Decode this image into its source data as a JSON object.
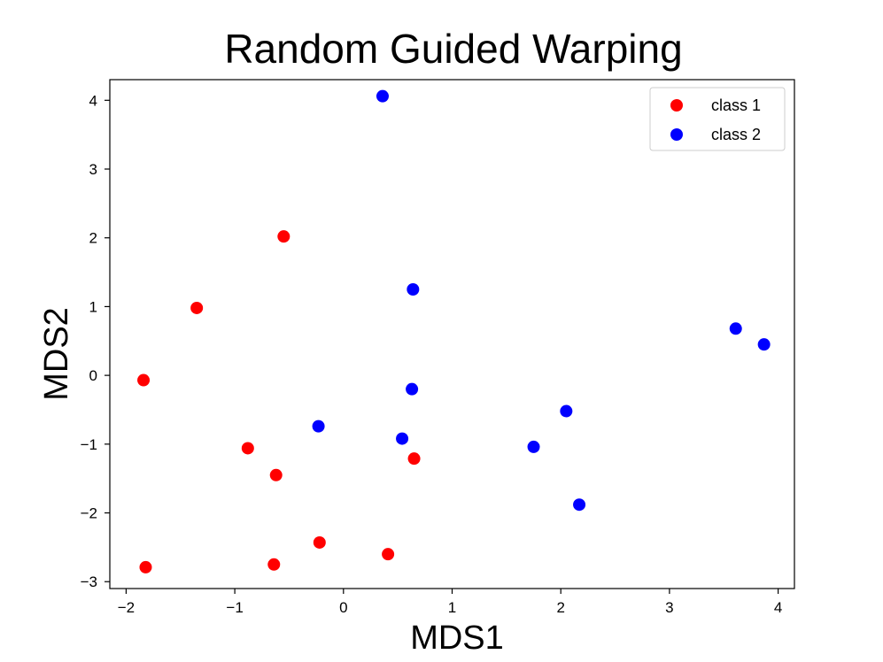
{
  "chart_data": {
    "type": "scatter",
    "title": "Random Guided Warping",
    "xlabel": "MDS1",
    "ylabel": "MDS2",
    "xlim": [
      -2.15,
      4.15
    ],
    "ylim": [
      -3.1,
      4.3
    ],
    "xticks": [
      -2,
      -1,
      0,
      1,
      2,
      3,
      4
    ],
    "yticks": [
      -3,
      -2,
      -1,
      0,
      1,
      2,
      3,
      4
    ],
    "xtick_labels": [
      "−2",
      "−1",
      "0",
      "1",
      "2",
      "3",
      "4"
    ],
    "ytick_labels": [
      "−3",
      "−2",
      "−1",
      "0",
      "1",
      "2",
      "3",
      "4"
    ],
    "grid": false,
    "legend_position": "top-right",
    "series": [
      {
        "name": "class 1",
        "color": "#ff0000",
        "points": [
          {
            "x": -0.55,
            "y": 2.02
          },
          {
            "x": -1.35,
            "y": 0.98
          },
          {
            "x": -1.84,
            "y": -0.07
          },
          {
            "x": -0.88,
            "y": -1.06
          },
          {
            "x": -0.62,
            "y": -1.45
          },
          {
            "x": 0.65,
            "y": -1.21
          },
          {
            "x": -0.22,
            "y": -2.43
          },
          {
            "x": 0.41,
            "y": -2.6
          },
          {
            "x": -0.64,
            "y": -2.75
          },
          {
            "x": -1.82,
            "y": -2.79
          }
        ]
      },
      {
        "name": "class 2",
        "color": "#0000ff",
        "points": [
          {
            "x": 0.36,
            "y": 4.06
          },
          {
            "x": 0.64,
            "y": 1.25
          },
          {
            "x": 3.61,
            "y": 0.68
          },
          {
            "x": 3.87,
            "y": 0.45
          },
          {
            "x": 0.63,
            "y": -0.2
          },
          {
            "x": 2.05,
            "y": -0.52
          },
          {
            "x": -0.23,
            "y": -0.74
          },
          {
            "x": 0.54,
            "y": -0.92
          },
          {
            "x": 1.75,
            "y": -1.04
          },
          {
            "x": 2.17,
            "y": -1.88
          }
        ]
      }
    ]
  }
}
